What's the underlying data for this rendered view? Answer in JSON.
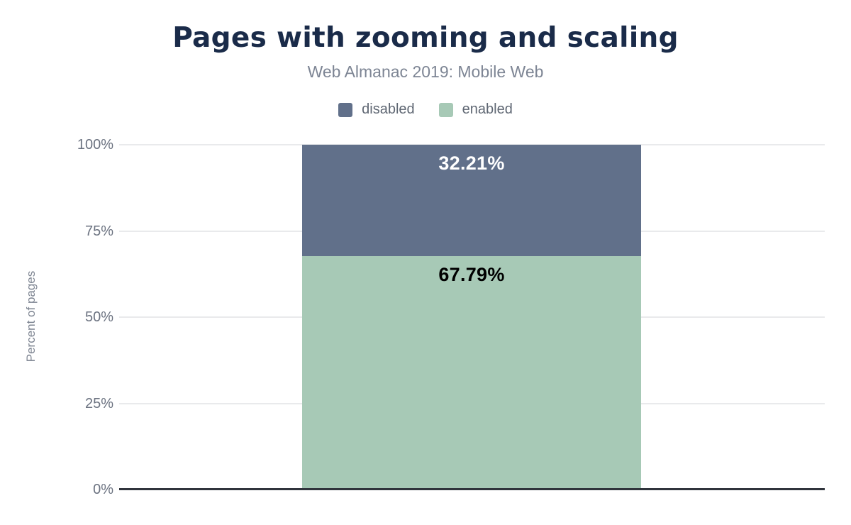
{
  "chart_data": {
    "type": "bar",
    "stacked": true,
    "title": "Pages with zooming and scaling",
    "subtitle": "Web Almanac 2019: Mobile Web",
    "ylabel": "Percent of pages",
    "categories": [
      ""
    ],
    "series": [
      {
        "name": "disabled",
        "values": [
          32.21
        ],
        "data_label": "32.21%",
        "color": "#61708a",
        "label_color": "#ffffff"
      },
      {
        "name": "enabled",
        "values": [
          67.79
        ],
        "data_label": "67.79%",
        "color": "#a7c9b6",
        "label_color": "#000000"
      }
    ],
    "ylim": [
      0,
      100
    ],
    "yticks": [
      {
        "value": 0,
        "label": "0%"
      },
      {
        "value": 25,
        "label": "25%"
      },
      {
        "value": 50,
        "label": "50%"
      },
      {
        "value": 75,
        "label": "75%"
      },
      {
        "value": 100,
        "label": "100%"
      }
    ],
    "grid": true,
    "legend_position": "top",
    "colors": {
      "title": "#1a2b49",
      "subtitle": "#7d8594",
      "legend_text": "#5f6773",
      "tick_text": "#6b7280",
      "axis_title_text": "#7d8491",
      "gridline": "#e9eaec",
      "baseline": "#30343c",
      "background": "#ffffff"
    }
  }
}
